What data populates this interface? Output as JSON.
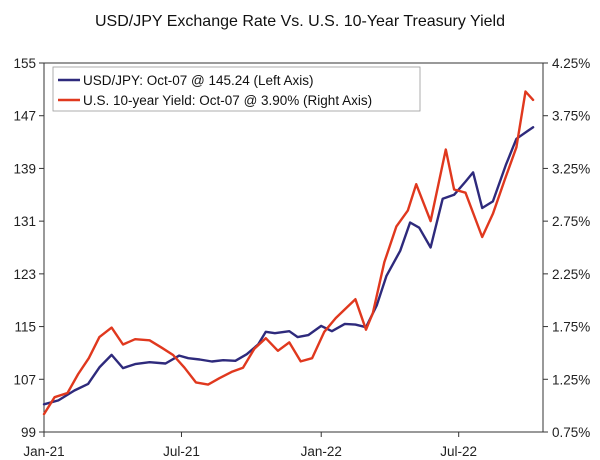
{
  "chart_data": {
    "type": "line",
    "title": "USD/JPY Exchange Rate Vs. U.S. 10-Year Treasury Yield",
    "x_tick_labels": [
      "Jan-21",
      "Jul-21",
      "Jan-22",
      "Jul-22"
    ],
    "x_tick_dates": [
      "2021-01-01",
      "2021-07-01",
      "2022-01-01",
      "2022-07-01"
    ],
    "xlim": [
      "2021-01-01",
      "2022-10-20"
    ],
    "left_axis": {
      "ylim": [
        99,
        155
      ],
      "ticks": [
        99,
        107,
        115,
        123,
        131,
        139,
        147,
        155
      ],
      "tick_labels": [
        "99",
        "107",
        "115",
        "123",
        "131",
        "139",
        "147",
        "155"
      ]
    },
    "right_axis": {
      "ylim": [
        0.75,
        4.25
      ],
      "ticks": [
        0.75,
        1.25,
        1.75,
        2.25,
        2.75,
        3.25,
        3.75,
        4.25
      ],
      "tick_labels": [
        "0.75%",
        "1.25%",
        "1.75%",
        "2.25%",
        "2.75%",
        "3.25%",
        "3.75%",
        "4.25%"
      ]
    },
    "grid": false,
    "legend_position": "top-left",
    "series": [
      {
        "name": "USD/JPY: Oct-07 @ 145.24 (Left Axis)",
        "axis": "left",
        "color": "#2e2a7c",
        "x": [
          "2021-01-01",
          "2021-01-20",
          "2021-02-10",
          "2021-02-28",
          "2021-03-15",
          "2021-03-31",
          "2021-04-15",
          "2021-05-01",
          "2021-05-20",
          "2021-06-10",
          "2021-06-28",
          "2021-07-10",
          "2021-07-25",
          "2021-08-10",
          "2021-08-25",
          "2021-09-10",
          "2021-09-25",
          "2021-10-10",
          "2021-10-20",
          "2021-11-01",
          "2021-11-20",
          "2021-12-01",
          "2021-12-15",
          "2022-01-01",
          "2022-01-15",
          "2022-02-01",
          "2022-02-15",
          "2022-03-01",
          "2022-03-15",
          "2022-03-28",
          "2022-04-15",
          "2022-04-28",
          "2022-05-10",
          "2022-05-25",
          "2022-06-10",
          "2022-06-25",
          "2022-07-10",
          "2022-07-20",
          "2022-08-01",
          "2022-08-15",
          "2022-09-01",
          "2022-09-15",
          "2022-09-30",
          "2022-10-07"
        ],
        "y": [
          103.2,
          103.8,
          105.3,
          106.3,
          108.8,
          110.7,
          108.7,
          109.3,
          109.6,
          109.4,
          110.6,
          110.2,
          110.0,
          109.7,
          109.9,
          109.8,
          110.8,
          112.3,
          114.2,
          114.0,
          114.3,
          113.4,
          113.7,
          115.1,
          114.3,
          115.4,
          115.3,
          114.9,
          118.2,
          122.7,
          126.5,
          130.8,
          130.0,
          127.0,
          134.4,
          135.0,
          137.0,
          138.4,
          133.0,
          134.0,
          139.5,
          143.5,
          144.7,
          145.24
        ]
      },
      {
        "name": "U.S. 10-year Yield: Oct-07 @ 3.90% (Right Axis)",
        "axis": "right",
        "color": "#e0381e",
        "x": [
          "2021-01-01",
          "2021-01-15",
          "2021-02-01",
          "2021-02-15",
          "2021-03-01",
          "2021-03-15",
          "2021-03-31",
          "2021-04-15",
          "2021-05-01",
          "2021-05-20",
          "2021-06-05",
          "2021-06-20",
          "2021-07-05",
          "2021-07-20",
          "2021-08-05",
          "2021-08-20",
          "2021-09-05",
          "2021-09-20",
          "2021-10-05",
          "2021-10-20",
          "2021-11-05",
          "2021-11-20",
          "2021-12-05",
          "2021-12-20",
          "2022-01-05",
          "2022-01-20",
          "2022-02-05",
          "2022-02-15",
          "2022-03-01",
          "2022-03-10",
          "2022-03-25",
          "2022-04-10",
          "2022-04-25",
          "2022-05-06",
          "2022-05-25",
          "2022-06-14",
          "2022-06-25",
          "2022-07-10",
          "2022-08-01",
          "2022-08-15",
          "2022-08-31",
          "2022-09-15",
          "2022-09-27",
          "2022-10-07"
        ],
        "y": [
          0.92,
          1.08,
          1.12,
          1.3,
          1.45,
          1.65,
          1.74,
          1.58,
          1.63,
          1.62,
          1.55,
          1.48,
          1.36,
          1.22,
          1.2,
          1.26,
          1.32,
          1.36,
          1.54,
          1.64,
          1.52,
          1.6,
          1.42,
          1.45,
          1.7,
          1.83,
          1.94,
          2.01,
          1.72,
          1.88,
          2.36,
          2.7,
          2.85,
          3.1,
          2.75,
          3.43,
          3.05,
          3.02,
          2.6,
          2.82,
          3.15,
          3.45,
          3.98,
          3.9
        ]
      }
    ]
  }
}
